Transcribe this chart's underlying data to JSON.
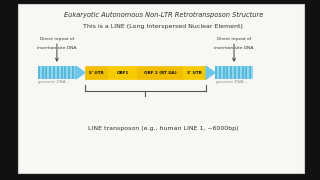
{
  "bg_color": "#f8f7f4",
  "outer_bg": "#111111",
  "panel_edge": "#cccccc",
  "title1_parts": [
    {
      "text": "Eukaryotic Autonomous Non-",
      "style": "normal"
    },
    {
      "text": "LTR",
      "style": "normal"
    },
    {
      "text": " ",
      "style": "normal"
    },
    {
      "text": "Retrotransposon",
      "style": "italic"
    },
    {
      "text": " Structure",
      "style": "normal"
    }
  ],
  "title1": "Eukaryotic Autonomous Non-LTR Retrotransposon Structure",
  "title2": "This is a LINE (Long Interspersed Nuclear Element)",
  "stripe_color_light": "#8dd8f0",
  "stripe_color_dark": "#5ab8da",
  "arrow_tri_color": "#6ec6e8",
  "seg_colors": [
    "#f5c200",
    "#f5c200",
    "#f5c200",
    "#f5c200"
  ],
  "seg_edge_color": "#c89a00",
  "seg_divider_color": "#c89a00",
  "segments": [
    {
      "label": "5' UTR",
      "weight": 1.0
    },
    {
      "label": "ORF1",
      "weight": 1.3
    },
    {
      "label": "ORF 2 (RT UA)",
      "weight": 2.0
    },
    {
      "label": "3' UTR",
      "weight": 1.0
    }
  ],
  "genomic_label": "genomic DNA...",
  "left_label_line1": "Direct repeat of",
  "left_label_line2": "insertion site DNA",
  "right_label_line1": "Direct repeat of",
  "right_label_line2": "insertion site DNA",
  "bottom_label": "LINE transposon (e.g., human LINE 1, ~6000bp)",
  "text_color": "#333333",
  "genomic_text_color": "#888888",
  "bracket_color": "#555555",
  "annotation_color": "#444444"
}
